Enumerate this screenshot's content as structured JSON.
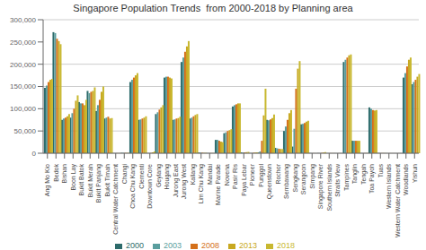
{
  "chart_data": {
    "type": "bar",
    "title": "Singapore Population Trends  from 2000-2018 by Planning area",
    "categories": [
      "Ang Mo Kio",
      "Bedok",
      "Bishan",
      "Boon Lay",
      "Bukit Batok",
      "Bukit Merah",
      "Bukit Panjang",
      "Bukit Timah",
      "Central Water Catchment",
      "Changi",
      "Choa Chu Kang",
      "Clementi",
      "Downtown Core",
      "Geylang",
      "Hougang",
      "Jurong East",
      "Jurong West",
      "Kallang",
      "Lim Chu Kang",
      "Mandai",
      "Marine Parade",
      "Novena",
      "Pasir Ris",
      "Paya Lebar",
      "Pioneer",
      "Punggol",
      "Queenstown",
      "Rochor",
      "Sembawang",
      "Sengkang",
      "Serangoon",
      "Simpang",
      "Singapore River",
      "Southern Islands",
      "Straits View",
      "Tampines",
      "Tanglin",
      "Tengah",
      "Toa Payoh",
      "Tuas",
      "Western Islands",
      "Western Water Catchment",
      "Woodlands",
      "Yishun"
    ],
    "series": [
      {
        "name": "2000",
        "color": "#2d6b6b",
        "values": [
          147000,
          272000,
          75000,
          80000,
          115000,
          140000,
          95000,
          78000,
          200,
          800,
          160000,
          75000,
          200,
          88000,
          170000,
          75000,
          205000,
          78000,
          1500,
          300,
          30000,
          45000,
          105000,
          2000,
          300,
          1500,
          75000,
          12000,
          50000,
          15000,
          65000,
          400,
          300,
          200,
          100,
          205000,
          28000,
          300,
          103000,
          300,
          100,
          100,
          170000,
          155000
        ]
      },
      {
        "name": "2003",
        "color": "#5a9e9e",
        "values": [
          152000,
          270000,
          78000,
          90000,
          112000,
          135000,
          108000,
          80000,
          200,
          800,
          165000,
          76000,
          200,
          92000,
          172000,
          76000,
          215000,
          80000,
          1500,
          300,
          30000,
          47000,
          108000,
          2000,
          500,
          4000,
          74000,
          11000,
          60000,
          55000,
          66000,
          300,
          300,
          200,
          100,
          210000,
          28000,
          300,
          100000,
          300,
          100,
          100,
          180000,
          160000
        ]
      },
      {
        "name": "2008",
        "color": "#d4701a",
        "values": [
          160000,
          257000,
          80000,
          100000,
          112000,
          138000,
          120000,
          82000,
          200,
          800,
          170000,
          78000,
          500,
          98000,
          172000,
          78000,
          228000,
          83000,
          1200,
          300,
          28000,
          50000,
          110000,
          2000,
          1000,
          28000,
          76000,
          10000,
          75000,
          145000,
          68000,
          200,
          700,
          200,
          100,
          215000,
          28000,
          300,
          97000,
          300,
          100,
          100,
          195000,
          165000
        ]
      },
      {
        "name": "2013",
        "color": "#c8a820",
        "values": [
          165000,
          252000,
          83000,
          118000,
          108000,
          140000,
          138000,
          78000,
          200,
          700,
          175000,
          80000,
          2000,
          103000,
          170000,
          79000,
          240000,
          86000,
          800,
          300,
          26000,
          52000,
          112000,
          2500,
          1500,
          85000,
          79000,
          9500,
          90000,
          190000,
          71000,
          150,
          1500,
          200,
          100,
          220000,
          28000,
          300,
          96000,
          300,
          100,
          100,
          210000,
          172000
        ]
      },
      {
        "name": "2018",
        "color": "#c8b830",
        "values": [
          167000,
          245000,
          88000,
          130000,
          120000,
          148000,
          150000,
          79000,
          200,
          700,
          180000,
          83000,
          4000,
          108000,
          168000,
          82000,
          252000,
          88000,
          800,
          300,
          25000,
          54000,
          112000,
          3000,
          2000,
          145000,
          87000,
          9500,
          97000,
          207000,
          73000,
          100,
          2500,
          200,
          100,
          222000,
          28000,
          300,
          97000,
          300,
          100,
          100,
          215000,
          178000
        ]
      }
    ],
    "ylim": [
      0,
      300000
    ],
    "yticks": [
      0,
      {
        "value": 50000,
        "label": "50,000"
      },
      {
        "value": 100000,
        "label": "100,000"
      },
      {
        "value": 150000,
        "label": "150,000"
      },
      {
        "value": 200000,
        "label": "200,000"
      },
      {
        "value": 250000,
        "label": "250,000"
      },
      {
        "value": 300000,
        "label": "300,000"
      }
    ],
    "grid": true,
    "legend": "bottom"
  }
}
